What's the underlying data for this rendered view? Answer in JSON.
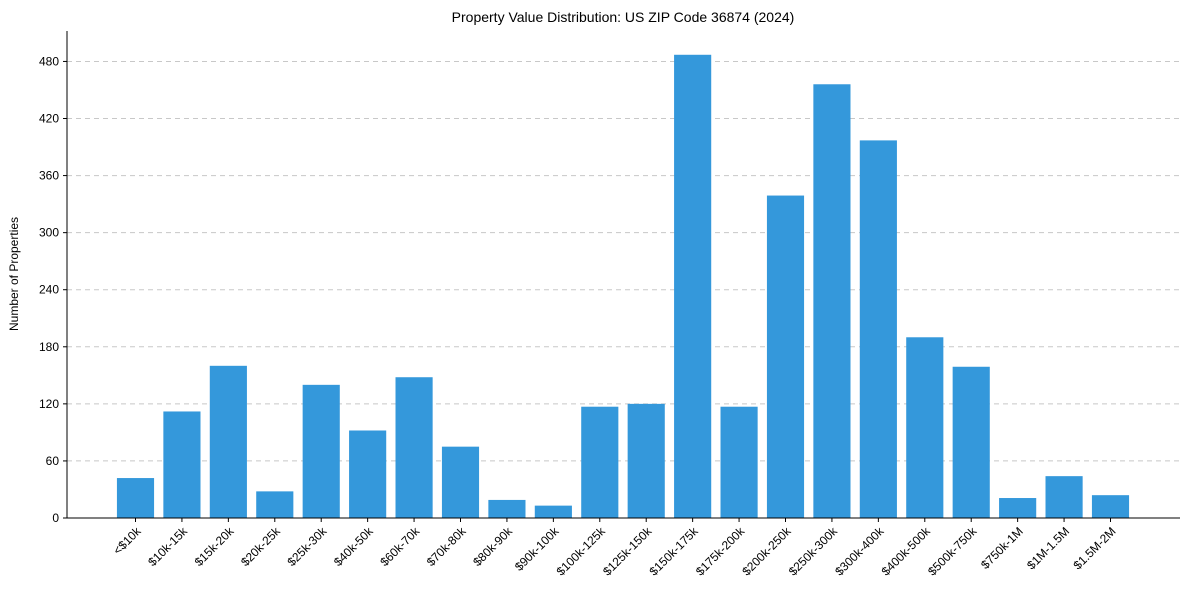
{
  "chart_data": {
    "type": "bar",
    "title": "Property Value Distribution: US ZIP Code 36874 (2024)",
    "xlabel": "",
    "ylabel": "Number of Properties",
    "categories": [
      "<$10k",
      "$10k-15k",
      "$15k-20k",
      "$20k-25k",
      "$25k-30k",
      "$40k-50k",
      "$60k-70k",
      "$70k-80k",
      "$80k-90k",
      "$90k-100k",
      "$100k-125k",
      "$125k-150k",
      "$150k-175k",
      "$175k-200k",
      "$200k-250k",
      "$250k-300k",
      "$300k-400k",
      "$400k-500k",
      "$500k-750k",
      "$750k-1M",
      "$1M-1.5M",
      "$1.5M-2M"
    ],
    "values": [
      42,
      112,
      160,
      28,
      140,
      92,
      148,
      75,
      19,
      13,
      117,
      120,
      487,
      117,
      339,
      456,
      397,
      190,
      159,
      21,
      44,
      24
    ],
    "ylim": [
      0,
      512
    ],
    "yticks": [
      0,
      60,
      120,
      180,
      240,
      300,
      360,
      420,
      480
    ],
    "grid": "y",
    "bar_color": "#3498db"
  }
}
